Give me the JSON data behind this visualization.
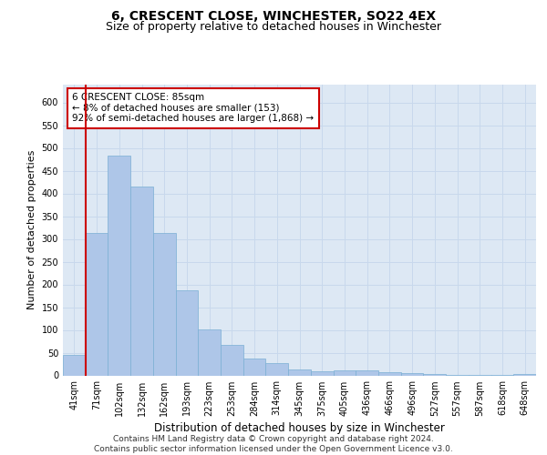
{
  "title": "6, CRESCENT CLOSE, WINCHESTER, SO22 4EX",
  "subtitle": "Size of property relative to detached houses in Winchester",
  "xlabel": "Distribution of detached houses by size in Winchester",
  "ylabel": "Number of detached properties",
  "categories": [
    "41sqm",
    "71sqm",
    "102sqm",
    "132sqm",
    "162sqm",
    "193sqm",
    "223sqm",
    "253sqm",
    "284sqm",
    "314sqm",
    "345sqm",
    "375sqm",
    "405sqm",
    "436sqm",
    "466sqm",
    "496sqm",
    "527sqm",
    "557sqm",
    "587sqm",
    "618sqm",
    "648sqm"
  ],
  "values": [
    45,
    313,
    483,
    415,
    313,
    188,
    102,
    68,
    37,
    28,
    13,
    10,
    12,
    12,
    8,
    5,
    3,
    1,
    1,
    1,
    3
  ],
  "bar_color": "#aec6e8",
  "bar_edge_color": "#7aafd4",
  "grid_color": "#c8d8ec",
  "background_color": "#dde8f4",
  "property_line_color": "#cc0000",
  "property_line_x": 0.5,
  "annotation_text": "6 CRESCENT CLOSE: 85sqm\n← 8% of detached houses are smaller (153)\n92% of semi-detached houses are larger (1,868) →",
  "annotation_box_edgecolor": "#cc0000",
  "ylim": [
    0,
    640
  ],
  "yticks": [
    0,
    50,
    100,
    150,
    200,
    250,
    300,
    350,
    400,
    450,
    500,
    550,
    600
  ],
  "footer_text": "Contains HM Land Registry data © Crown copyright and database right 2024.\nContains public sector information licensed under the Open Government Licence v3.0.",
  "title_fontsize": 10,
  "subtitle_fontsize": 9,
  "xlabel_fontsize": 8.5,
  "ylabel_fontsize": 8,
  "tick_fontsize": 7,
  "annotation_fontsize": 7.5,
  "footer_fontsize": 6.5
}
